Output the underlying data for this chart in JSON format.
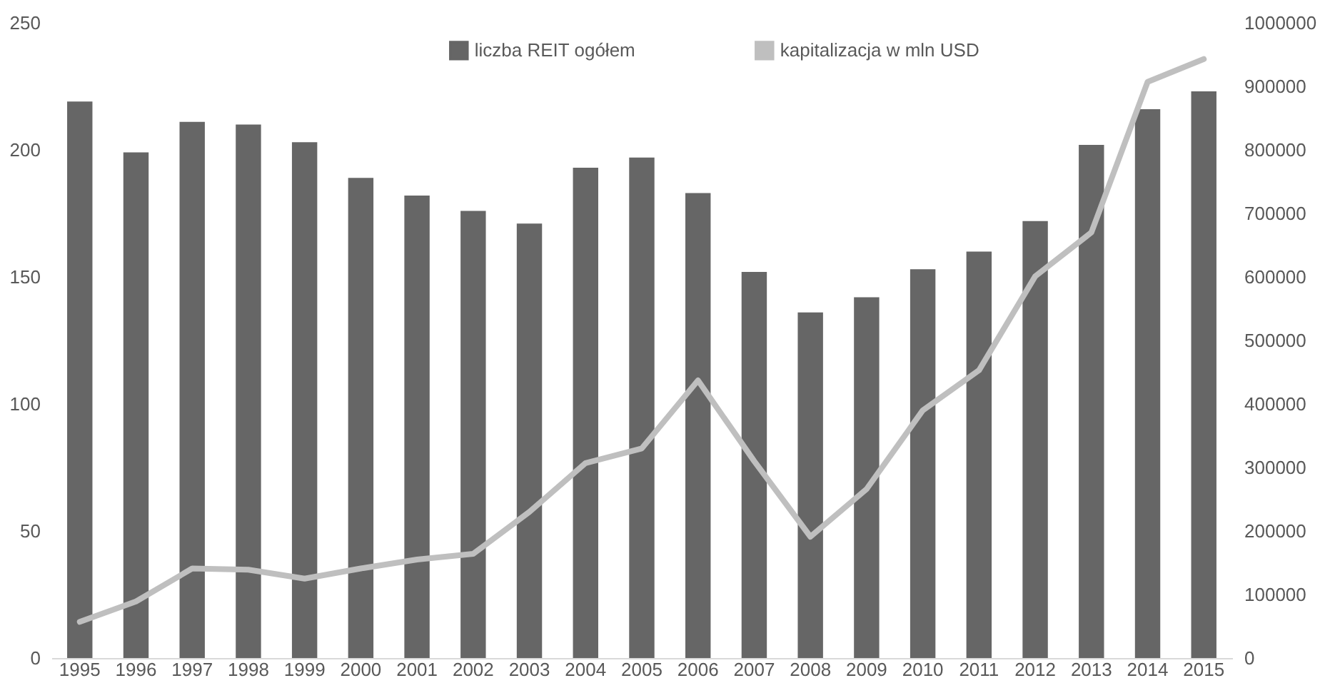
{
  "chart_data": {
    "type": "bar",
    "categories": [
      "1995",
      "1996",
      "1997",
      "1998",
      "1999",
      "2000",
      "2001",
      "2002",
      "2003",
      "2004",
      "2005",
      "2006",
      "2007",
      "2008",
      "2009",
      "2010",
      "2011",
      "2012",
      "2013",
      "2014",
      "2015"
    ],
    "series": [
      {
        "name": "liczba REIT ogółem",
        "color": "#666666",
        "values": [
          219,
          199,
          211,
          210,
          203,
          189,
          182,
          176,
          171,
          193,
          197,
          183,
          152,
          136,
          142,
          153,
          160,
          172,
          202,
          216,
          223
        ]
      },
      {
        "name": "kapitalizacja w mln USD",
        "type": "line",
        "axis": "y2",
        "color": "#bfbfbf",
        "values": [
          57000,
          89000,
          141000,
          139000,
          125000,
          141000,
          155000,
          164000,
          230000,
          307000,
          330000,
          437000,
          310000,
          191000,
          266000,
          390000,
          453000,
          601000,
          670000,
          907000,
          943000
        ]
      }
    ],
    "ylim": [
      0,
      250
    ],
    "yticks": [
      0,
      50,
      100,
      150,
      200,
      250
    ],
    "y2lim": [
      0,
      1000000
    ],
    "y2ticks": [
      0,
      100000,
      200000,
      300000,
      400000,
      500000,
      600000,
      700000,
      800000,
      900000,
      1000000
    ],
    "legend": "top",
    "grid": false
  }
}
